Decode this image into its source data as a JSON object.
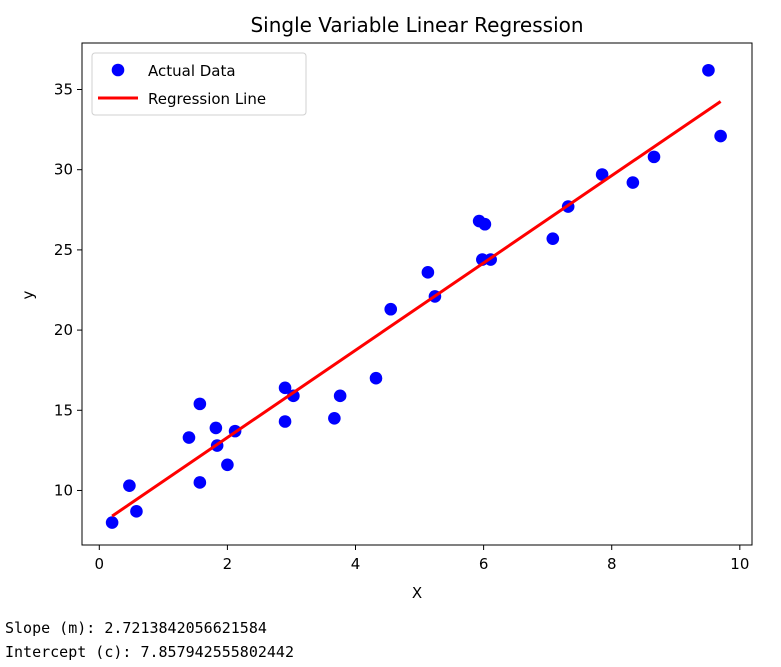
{
  "chart_data": {
    "type": "scatter",
    "title": "Single Variable Linear Regression",
    "xlabel": "X",
    "ylabel": "y",
    "xlim": [
      -0.27,
      10.19
    ],
    "ylim": [
      6.6,
      37.9
    ],
    "xticks": [
      0,
      2,
      4,
      6,
      8,
      10
    ],
    "yticks": [
      10,
      15,
      20,
      25,
      30,
      35
    ],
    "grid": false,
    "legend_position": "top-left",
    "series": [
      {
        "name": "Actual Data",
        "kind": "scatter",
        "color": "#0000ff",
        "points": [
          [
            0.2,
            8.0
          ],
          [
            0.47,
            10.3
          ],
          [
            0.58,
            8.7
          ],
          [
            1.4,
            13.3
          ],
          [
            1.57,
            15.4
          ],
          [
            1.57,
            10.5
          ],
          [
            1.82,
            13.9
          ],
          [
            1.84,
            12.8
          ],
          [
            2.0,
            11.6
          ],
          [
            2.12,
            13.7
          ],
          [
            2.9,
            16.4
          ],
          [
            2.9,
            14.3
          ],
          [
            3.03,
            15.9
          ],
          [
            3.67,
            14.5
          ],
          [
            3.76,
            15.9
          ],
          [
            4.32,
            17.0
          ],
          [
            4.55,
            21.3
          ],
          [
            5.13,
            23.6
          ],
          [
            5.24,
            22.1
          ],
          [
            5.93,
            26.8
          ],
          [
            5.98,
            24.4
          ],
          [
            6.02,
            26.6
          ],
          [
            6.11,
            24.4
          ],
          [
            7.08,
            25.7
          ],
          [
            7.32,
            27.7
          ],
          [
            7.85,
            29.7
          ],
          [
            8.33,
            29.2
          ],
          [
            8.66,
            30.8
          ],
          [
            9.51,
            36.2
          ],
          [
            9.7,
            32.1
          ]
        ]
      },
      {
        "name": "Regression Line",
        "kind": "line",
        "color": "#ff0000",
        "slope": 2.7213842056621584,
        "intercept": 7.857942555802442,
        "x_range": [
          0.2,
          9.7
        ]
      }
    ]
  },
  "output": {
    "slope_line": "Slope (m): 2.7213842056621584",
    "intercept_line": "Intercept (c): 7.857942555802442"
  }
}
